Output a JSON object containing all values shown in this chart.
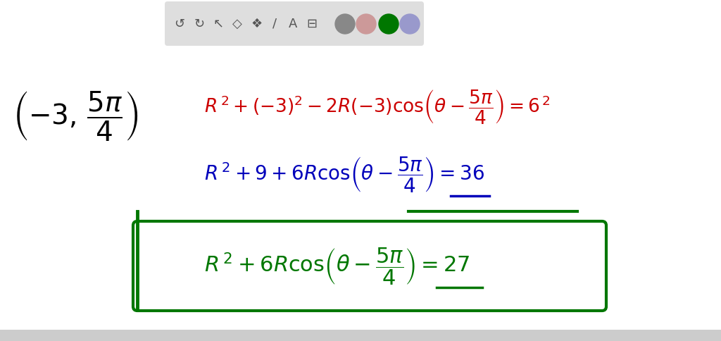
{
  "bg_color": "#ffffff",
  "toolbar_bg": "#dedede",
  "point_color": "#000000",
  "line1_color": "#cc0000",
  "line2_color": "#0000bb",
  "line3_color": "#007700",
  "underline_color_blue": "#0000bb",
  "underline_color_green": "#007700",
  "box_color": "#007700",
  "bottom_bar_color": "#cccccc",
  "toolbar_icon_color": "#555555",
  "circle_colors": [
    "#888888",
    "#cc9999",
    "#007700",
    "#9999cc"
  ],
  "figsize": [
    10.24,
    4.84
  ],
  "dpi": 100
}
